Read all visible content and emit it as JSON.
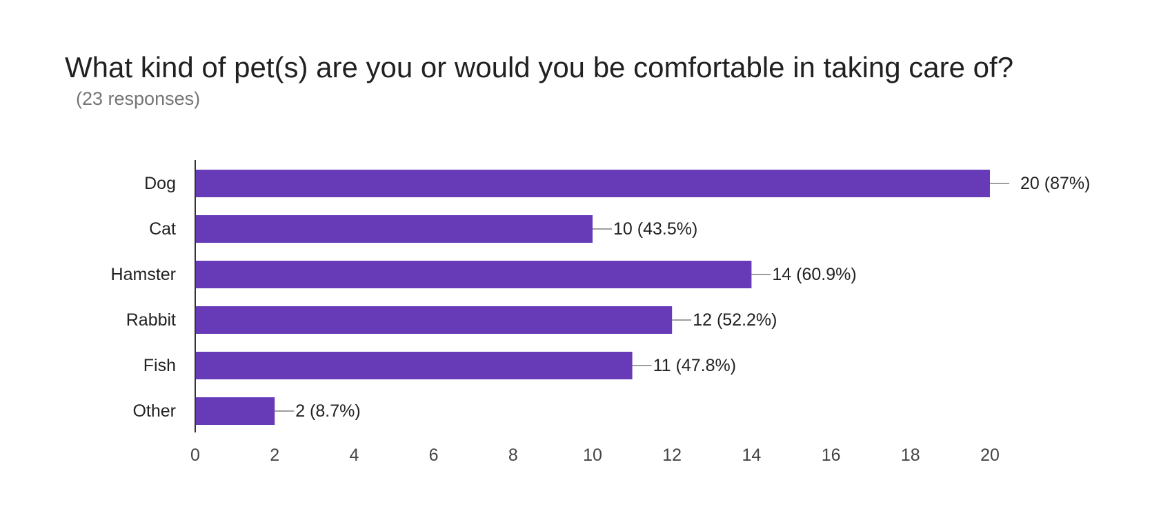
{
  "header": {
    "title": "What kind of pet(s) are you or would you be comfortable in taking care of?",
    "subtitle": "(23 responses)"
  },
  "colors": {
    "bar": "#673AB7",
    "axis": "#333333",
    "leader": "#9E9E9E"
  },
  "chart_data": {
    "type": "bar",
    "orientation": "horizontal",
    "title": "What kind of pet(s) are you or would you be comfortable in taking care of?",
    "subtitle": "(23 responses)",
    "categories": [
      "Dog",
      "Cat",
      "Hamster",
      "Rabbit",
      "Fish",
      "Other"
    ],
    "values": [
      20,
      10,
      14,
      12,
      11,
      2
    ],
    "data_labels": [
      "20 (87%)",
      "10 (43.5%)",
      "14 (60.9%)",
      "12 (52.2%)",
      "11 (47.8%)",
      "2 (8.7%)"
    ],
    "xlim": [
      0,
      20
    ],
    "xticks": [
      0,
      2,
      4,
      6,
      8,
      10,
      12,
      14,
      16,
      18,
      20
    ],
    "xlabel": "",
    "ylabel": "",
    "grid": false,
    "legend": "none"
  }
}
